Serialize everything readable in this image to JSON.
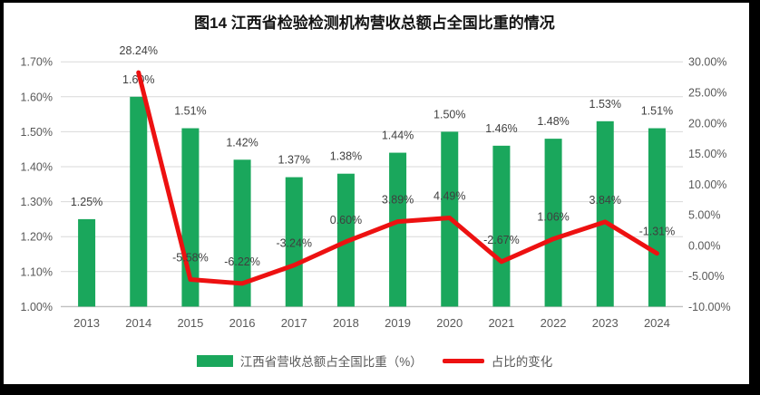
{
  "frame": {
    "border_color": "#000000",
    "background": "#ffffff"
  },
  "chart_data": {
    "type": "combo",
    "title": "图14 江西省检验检测机构营收总额占全国比重的情况",
    "categories": [
      "2013",
      "2014",
      "2015",
      "2016",
      "2017",
      "2018",
      "2019",
      "2020",
      "2021",
      "2022",
      "2023",
      "2024"
    ],
    "series": [
      {
        "name": "江西省营收总额占全国比重（%）",
        "type": "bar",
        "axis": "left",
        "color": "#1AA75C",
        "values": [
          1.25,
          1.6,
          1.51,
          1.42,
          1.37,
          1.38,
          1.44,
          1.5,
          1.46,
          1.48,
          1.53,
          1.51
        ],
        "label_format": "0.00%"
      },
      {
        "name": "占比的变化",
        "type": "line",
        "axis": "right",
        "color": "#ED1111",
        "values": [
          null,
          28.24,
          -5.58,
          -6.22,
          -3.24,
          0.6,
          3.89,
          4.49,
          -2.67,
          1.06,
          3.84,
          -1.31
        ],
        "label_format": "0.00%"
      }
    ],
    "left_axis": {
      "min": 1.0,
      "max": 1.7,
      "step": 0.1,
      "tick_format": "0.00%"
    },
    "right_axis": {
      "min": -10,
      "max": 30,
      "step": 5,
      "tick_format": "0.00%"
    },
    "grid": true,
    "gridline_color": "#D9D9D9",
    "axis_line_color": "#BFBFBF",
    "tick_label_color": "#595959",
    "data_label_color": "#3F3F3F",
    "legend_position": "bottom"
  }
}
